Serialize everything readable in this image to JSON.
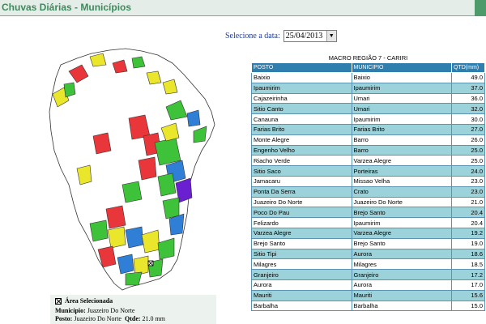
{
  "header": {
    "title": "Chuvas Diárias - Municípios"
  },
  "date_selector": {
    "label": "Selecione a data:",
    "value": "25/04/2013"
  },
  "selected_area": {
    "title": "Área Selecionada",
    "municipio_label": "Município:",
    "municipio": "Juazeiro Do Norte",
    "posto_label": "Posto:",
    "posto": "Juazeiro Do Norte",
    "qtde_label": "Qtde:",
    "qtde": "21.0 mm"
  },
  "map": {
    "colors": {
      "red": "#e8363a",
      "yellow": "#e9e62c",
      "green": "#3ec23a",
      "blue": "#2f7fd6",
      "purple": "#6a1fd0",
      "white": "#ffffff",
      "border": "#333333"
    }
  },
  "table": {
    "title": "MACRO REGIÃO 7 - CARIRI",
    "headers": {
      "posto": "POSTO",
      "municipio": "MUNICIPIO",
      "qtd": "QTD(mm)"
    },
    "rows": [
      {
        "posto": "Baixio",
        "municipio": "Baixio",
        "qtd": "49.0"
      },
      {
        "posto": "Ipaumirim",
        "municipio": "Ipaumirim",
        "qtd": "37.0"
      },
      {
        "posto": "Cajazeirinha",
        "municipio": "Umari",
        "qtd": "36.0"
      },
      {
        "posto": "Sitio Canto",
        "municipio": "Umari",
        "qtd": "32.0"
      },
      {
        "posto": "Canauna",
        "municipio": "Ipaumirim",
        "qtd": "30.0"
      },
      {
        "posto": "Farias Brito",
        "municipio": "Farias Brito",
        "qtd": "27.0"
      },
      {
        "posto": "Monte Alegre",
        "municipio": "Barro",
        "qtd": "26.0"
      },
      {
        "posto": "Engenho Velho",
        "municipio": "Barro",
        "qtd": "25.0"
      },
      {
        "posto": "Riacho Verde",
        "municipio": "Varzea Alegre",
        "qtd": "25.0"
      },
      {
        "posto": "Sitio Saco",
        "municipio": "Porteiras",
        "qtd": "24.0"
      },
      {
        "posto": "Jamacaru",
        "municipio": "Missao Velha",
        "qtd": "23.0"
      },
      {
        "posto": "Ponta Da Serra",
        "municipio": "Crato",
        "qtd": "23.0"
      },
      {
        "posto": "Juazeiro Do Norte",
        "municipio": "Juazeiro Do Norte",
        "qtd": "21.0"
      },
      {
        "posto": "Poco Do Pau",
        "municipio": "Brejo Santo",
        "qtd": "20.4"
      },
      {
        "posto": "Felizardo",
        "municipio": "Ipaumirim",
        "qtd": "20.4"
      },
      {
        "posto": "Varzea Alegre",
        "municipio": "Varzea Alegre",
        "qtd": "19.2"
      },
      {
        "posto": "Brejo Santo",
        "municipio": "Brejo Santo",
        "qtd": "19.0"
      },
      {
        "posto": "Sitio Tipi",
        "municipio": "Aurora",
        "qtd": "18.6"
      },
      {
        "posto": "Milagres",
        "municipio": "Milagres",
        "qtd": "18.5"
      },
      {
        "posto": "Granjeiro",
        "municipio": "Granjeiro",
        "qtd": "17.2"
      },
      {
        "posto": "Aurora",
        "municipio": "Aurora",
        "qtd": "17.0"
      },
      {
        "posto": "Mauriti",
        "municipio": "Mauriti",
        "qtd": "15.6"
      },
      {
        "posto": "Barbalha",
        "municipio": "Barbalha",
        "qtd": "15.0"
      }
    ]
  }
}
